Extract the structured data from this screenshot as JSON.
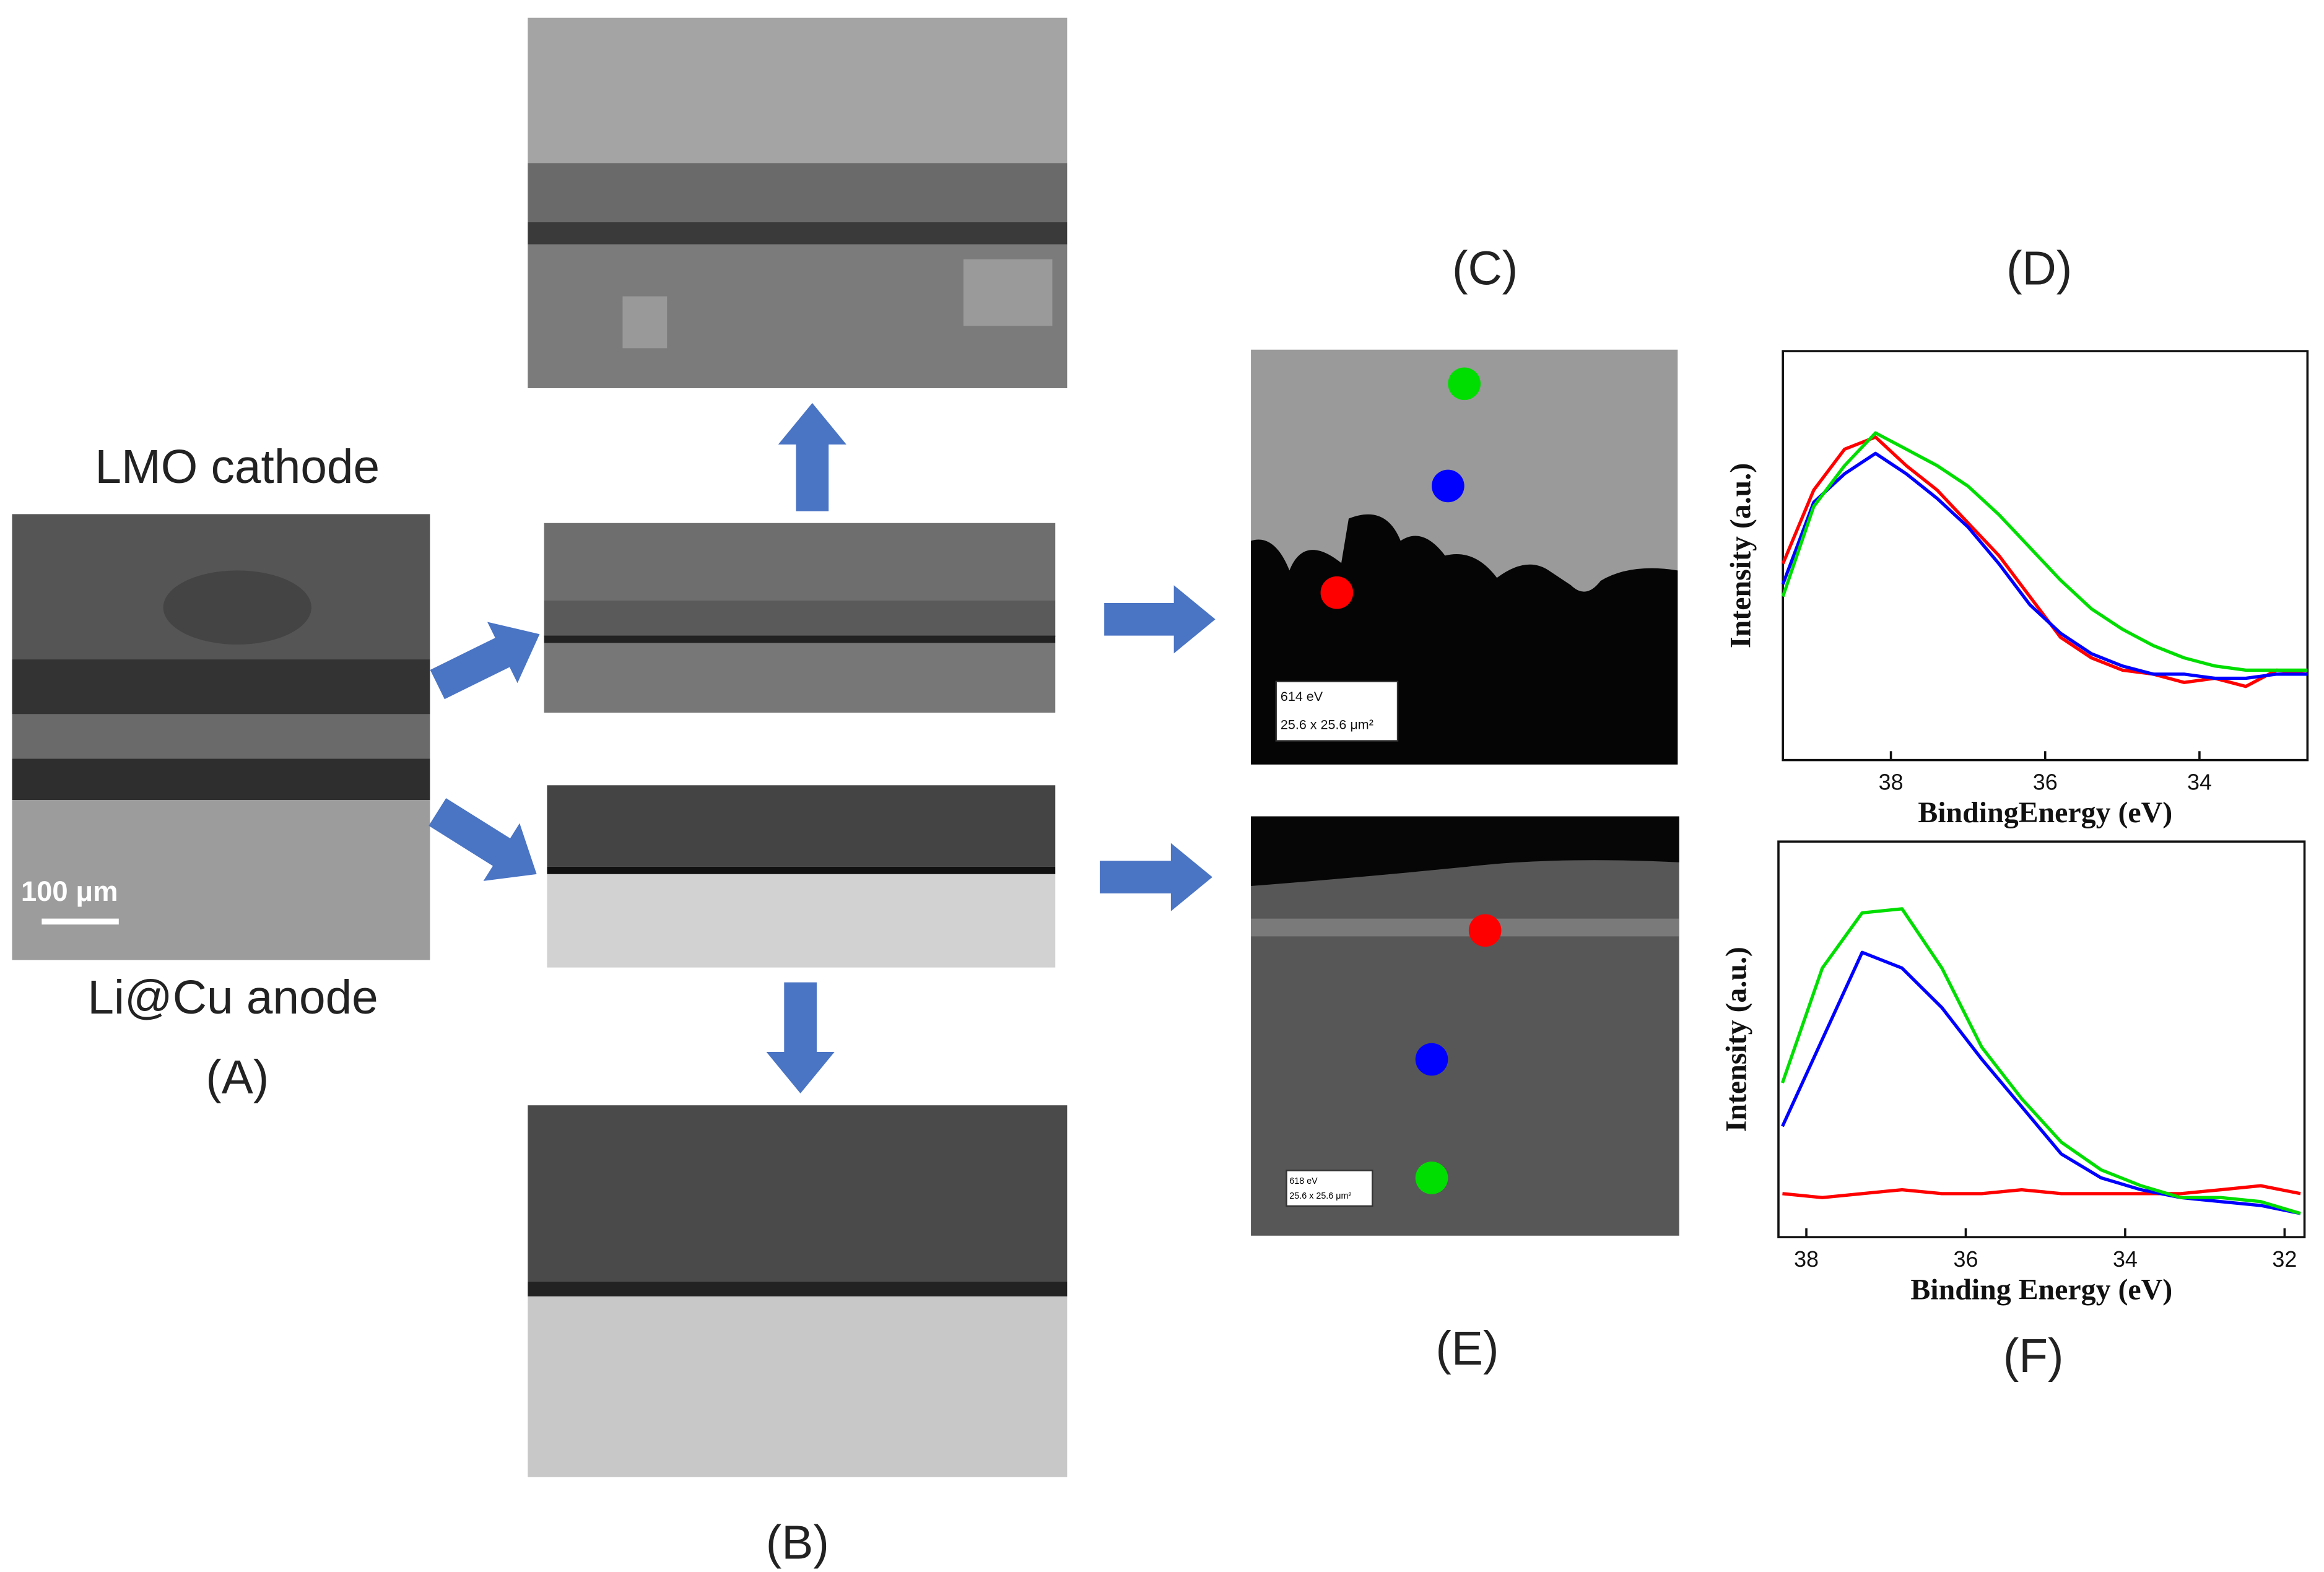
{
  "figure": {
    "panel_labels": [
      "(A)",
      "(B)",
      "(C)",
      "(D)",
      "(E)",
      "(F)"
    ],
    "panel_a": {
      "top": "LMO cathode",
      "bottom": "Li@Cu anode",
      "scale_bar": "100 μm"
    },
    "panel_c": {
      "energy": "614 eV",
      "area": "25.6 x 25.6 μm²"
    },
    "panel_e": {
      "energy": "618 eV",
      "area": "25.6 x 25.6 μm²"
    }
  },
  "chart_data": [
    {
      "type": "line",
      "xlabel": "BindingEnergy (eV)",
      "ylabel": "Intensity (a.u.)",
      "x": [
        39.4,
        39.0,
        38.6,
        38.2,
        37.8,
        37.4,
        37.0,
        36.6,
        36.2,
        35.8,
        35.4,
        35.0,
        34.6,
        34.2,
        33.8,
        33.4,
        33.0,
        32.6
      ],
      "series": [
        {
          "color": "#ff0000",
          "values": [
            0.48,
            0.66,
            0.76,
            0.79,
            0.72,
            0.66,
            0.58,
            0.5,
            0.4,
            0.3,
            0.25,
            0.22,
            0.21,
            0.19,
            0.2,
            0.18,
            0.22,
            0.21
          ]
        },
        {
          "color": "#0000ff",
          "values": [
            0.43,
            0.63,
            0.7,
            0.75,
            0.7,
            0.64,
            0.57,
            0.48,
            0.38,
            0.31,
            0.26,
            0.23,
            0.21,
            0.21,
            0.2,
            0.2,
            0.21,
            0.21
          ]
        },
        {
          "color": "#00dd00",
          "values": [
            0.4,
            0.62,
            0.72,
            0.8,
            0.76,
            0.72,
            0.67,
            0.6,
            0.52,
            0.44,
            0.37,
            0.32,
            0.28,
            0.25,
            0.23,
            0.22,
            0.22,
            0.22
          ]
        }
      ],
      "xlim": [
        39.4,
        32.6
      ],
      "ylim": [
        0,
        1
      ],
      "xticks": [
        38,
        36,
        34
      ]
    },
    {
      "type": "line",
      "xlabel": "Binding Energy (eV)",
      "ylabel": "Intensity (a.u.)",
      "x": [
        38.3,
        37.8,
        37.3,
        36.8,
        36.3,
        35.8,
        35.3,
        34.8,
        34.3,
        33.8,
        33.3,
        32.8,
        32.3,
        31.8
      ],
      "series": [
        {
          "color": "#ff0000",
          "values": [
            0.11,
            0.1,
            0.11,
            0.12,
            0.11,
            0.11,
            0.12,
            0.11,
            0.11,
            0.11,
            0.11,
            0.12,
            0.13,
            0.11
          ]
        },
        {
          "color": "#0000ff",
          "values": [
            0.28,
            0.5,
            0.72,
            0.68,
            0.58,
            0.45,
            0.33,
            0.21,
            0.15,
            0.12,
            0.1,
            0.09,
            0.08,
            0.06
          ]
        },
        {
          "color": "#00dd00",
          "values": [
            0.39,
            0.68,
            0.82,
            0.83,
            0.68,
            0.48,
            0.35,
            0.24,
            0.17,
            0.13,
            0.1,
            0.1,
            0.09,
            0.06
          ]
        }
      ],
      "xlim": [
        38.35,
        31.75
      ],
      "ylim": [
        0,
        1
      ],
      "xticks": [
        38,
        36,
        34,
        32
      ]
    }
  ]
}
